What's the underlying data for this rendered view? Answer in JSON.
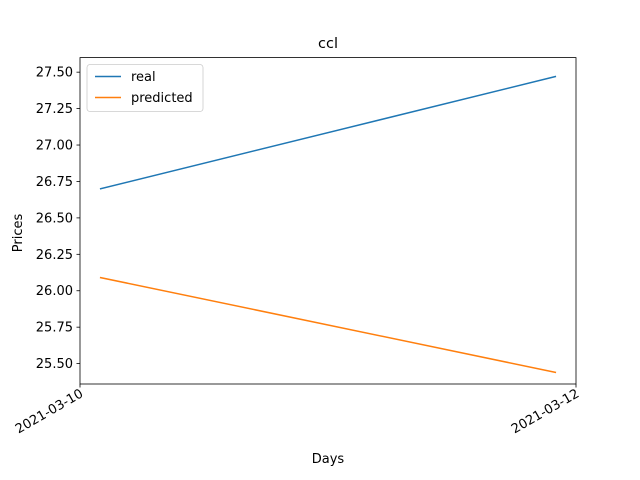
{
  "chart_data": {
    "type": "line",
    "title": "ccl",
    "xlabel": "Days",
    "ylabel": "Prices",
    "x_ticks": [
      "2021-03-10",
      "2021-03-12"
    ],
    "y_ticks": [
      25.5,
      25.75,
      26.0,
      26.25,
      26.5,
      26.75,
      27.0,
      27.25,
      27.5
    ],
    "ylim": [
      25.36,
      27.6
    ],
    "xlim": [
      "2021-03-10",
      "2021-03-12"
    ],
    "x": [
      "2021-03-10T02:00",
      "2021-03-11T22:00"
    ],
    "series": [
      {
        "name": "real",
        "color": "#1f77b4",
        "values": [
          26.7,
          27.47
        ]
      },
      {
        "name": "predicted",
        "color": "#ff7f0e",
        "values": [
          26.09,
          25.44
        ]
      }
    ],
    "legend": "upper-left",
    "grid": false
  }
}
